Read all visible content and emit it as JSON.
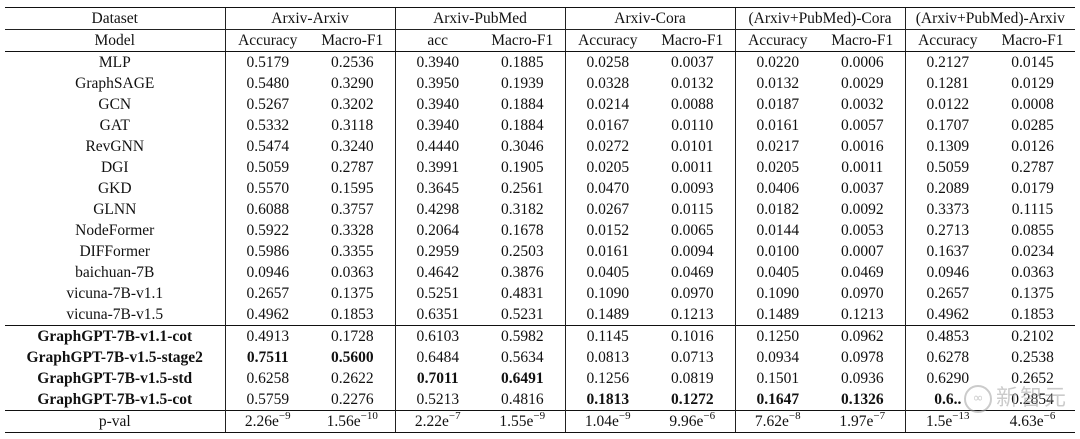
{
  "header": {
    "dataset_label": "Dataset",
    "model_label": "Model",
    "groups": [
      "Arxiv-Arxiv",
      "Arxiv-PubMed",
      "Arxiv-Cora",
      "(Arxiv+PubMed)-Cora",
      "(Arxiv+PubMed)-Arxiv"
    ],
    "metrics": [
      "Accuracy",
      "Macro-F1",
      "acc",
      "Macro-F1",
      "Accuracy",
      "Macro-F1",
      "Accuracy",
      "Macro-F1",
      "Accuracy",
      "Macro-F1"
    ]
  },
  "baselines": [
    {
      "model": "MLP",
      "values": [
        "0.5179",
        "0.2536",
        "0.3940",
        "0.1885",
        "0.0258",
        "0.0037",
        "0.0220",
        "0.0006",
        "0.2127",
        "0.0145"
      ]
    },
    {
      "model": "GraphSAGE",
      "values": [
        "0.5480",
        "0.3290",
        "0.3950",
        "0.1939",
        "0.0328",
        "0.0132",
        "0.0132",
        "0.0029",
        "0.1281",
        "0.0129"
      ]
    },
    {
      "model": "GCN",
      "values": [
        "0.5267",
        "0.3202",
        "0.3940",
        "0.1884",
        "0.0214",
        "0.0088",
        "0.0187",
        "0.0032",
        "0.0122",
        "0.0008"
      ]
    },
    {
      "model": "GAT",
      "values": [
        "0.5332",
        "0.3118",
        "0.3940",
        "0.1884",
        "0.0167",
        "0.0110",
        "0.0161",
        "0.0057",
        "0.1707",
        "0.0285"
      ]
    },
    {
      "model": "RevGNN",
      "values": [
        "0.5474",
        "0.3240",
        "0.4440",
        "0.3046",
        "0.0272",
        "0.0101",
        "0.0217",
        "0.0016",
        "0.1309",
        "0.0126"
      ]
    },
    {
      "model": "DGI",
      "values": [
        "0.5059",
        "0.2787",
        "0.3991",
        "0.1905",
        "0.0205",
        "0.0011",
        "0.0205",
        "0.0011",
        "0.5059",
        "0.2787"
      ]
    },
    {
      "model": "GKD",
      "values": [
        "0.5570",
        "0.1595",
        "0.3645",
        "0.2561",
        "0.0470",
        "0.0093",
        "0.0406",
        "0.0037",
        "0.2089",
        "0.0179"
      ]
    },
    {
      "model": "GLNN",
      "values": [
        "0.6088",
        "0.3757",
        "0.4298",
        "0.3182",
        "0.0267",
        "0.0115",
        "0.0182",
        "0.0092",
        "0.3373",
        "0.1115"
      ]
    },
    {
      "model": "NodeFormer",
      "values": [
        "0.5922",
        "0.3328",
        "0.2064",
        "0.1678",
        "0.0152",
        "0.0065",
        "0.0144",
        "0.0053",
        "0.2713",
        "0.0855"
      ]
    },
    {
      "model": "DIFFormer",
      "values": [
        "0.5986",
        "0.3355",
        "0.2959",
        "0.2503",
        "0.0161",
        "0.0094",
        "0.0100",
        "0.0007",
        "0.1637",
        "0.0234"
      ]
    },
    {
      "model": "baichuan-7B",
      "values": [
        "0.0946",
        "0.0363",
        "0.4642",
        "0.3876",
        "0.0405",
        "0.0469",
        "0.0405",
        "0.0469",
        "0.0946",
        "0.0363"
      ]
    },
    {
      "model": "vicuna-7B-v1.1",
      "values": [
        "0.2657",
        "0.1375",
        "0.5251",
        "0.4831",
        "0.1090",
        "0.0970",
        "0.1090",
        "0.0970",
        "0.2657",
        "0.1375"
      ]
    },
    {
      "model": "vicuna-7B-v1.5",
      "values": [
        "0.4962",
        "0.1853",
        "0.6351",
        "0.5231",
        "0.1489",
        "0.1213",
        "0.1489",
        "0.1213",
        "0.4962",
        "0.1853"
      ]
    }
  ],
  "ours": [
    {
      "model": "GraphGPT-7B-v1.1-cot",
      "values": [
        "0.4913",
        "0.1728",
        "0.6103",
        "0.5982",
        "0.1145",
        "0.1016",
        "0.1250",
        "0.0962",
        "0.4853",
        "0.2102"
      ],
      "bold": [
        false,
        false,
        false,
        false,
        false,
        false,
        false,
        false,
        false,
        false
      ]
    },
    {
      "model": "GraphGPT-7B-v1.5-stage2",
      "values": [
        "0.7511",
        "0.5600",
        "0.6484",
        "0.5634",
        "0.0813",
        "0.0713",
        "0.0934",
        "0.0978",
        "0.6278",
        "0.2538"
      ],
      "bold": [
        true,
        true,
        false,
        false,
        false,
        false,
        false,
        false,
        false,
        false
      ]
    },
    {
      "model": "GraphGPT-7B-v1.5-std",
      "values": [
        "0.6258",
        "0.2622",
        "0.7011",
        "0.6491",
        "0.1256",
        "0.0819",
        "0.1501",
        "0.0936",
        "0.6290",
        "0.2652"
      ],
      "bold": [
        false,
        false,
        true,
        true,
        false,
        false,
        false,
        false,
        false,
        false
      ]
    },
    {
      "model": "GraphGPT-7B-v1.5-cot",
      "values": [
        "0.5759",
        "0.2276",
        "0.5213",
        "0.4816",
        "0.1813",
        "0.1272",
        "0.1647",
        "0.1326",
        "0.6..",
        "0.2854"
      ],
      "bold": [
        false,
        false,
        false,
        false,
        true,
        true,
        true,
        true,
        true,
        false
      ]
    }
  ],
  "pval": {
    "label": "p-val",
    "values": [
      {
        "base": "2.26e",
        "exp": "−9"
      },
      {
        "base": "1.56e",
        "exp": "−10"
      },
      {
        "base": "2.22e",
        "exp": "−7"
      },
      {
        "base": "1.55e",
        "exp": "−9"
      },
      {
        "base": "1.04e",
        "exp": "−9"
      },
      {
        "base": "9.96e",
        "exp": "−6"
      },
      {
        "base": "7.62e",
        "exp": "−8"
      },
      {
        "base": "1.97e",
        "exp": "−7"
      },
      {
        "base": "1.5e",
        "exp": "−13"
      },
      {
        "base": "4.63e",
        "exp": "−6"
      }
    ]
  },
  "watermark": {
    "icon_text": "∞",
    "text": "新智元"
  }
}
